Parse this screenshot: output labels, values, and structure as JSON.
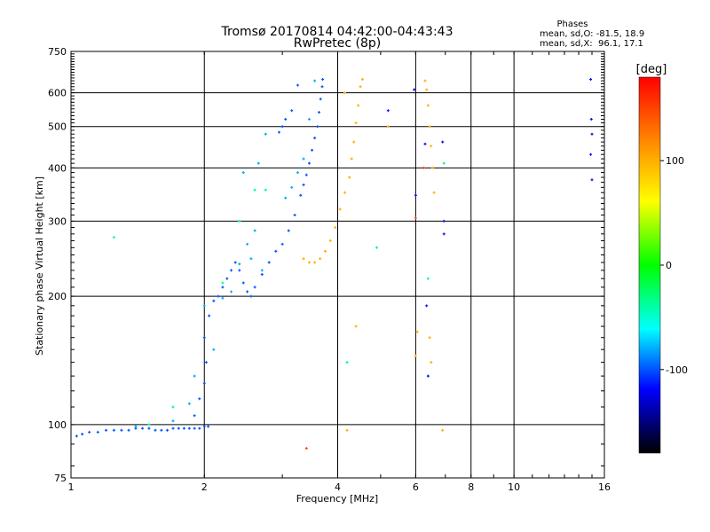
{
  "chart_data": {
    "type": "scatter",
    "title": "Tromsø 20170814 04:42:00-04:43:43",
    "subtitle": "RwPretec (8p)",
    "xlabel": "Frequency [MHz]",
    "ylabel": "Stationary phase Virtual Height [km]",
    "x_scale": "log",
    "y_scale": "log",
    "xlim": [
      1,
      16
    ],
    "ylim": [
      75,
      750
    ],
    "x_ticks": [
      1,
      2,
      4,
      6,
      8,
      10,
      16
    ],
    "y_ticks": [
      75,
      100,
      200,
      300,
      400,
      500,
      600,
      750
    ],
    "grid": true,
    "phases_box": {
      "title": "Phases",
      "line_o": "mean, sd,O: -81.5, 18.9",
      "line_x": "mean, sd,X:  96.1, 17.1"
    },
    "colorbar": {
      "label": "[deg]",
      "range": [
        -180,
        180
      ],
      "ticks": [
        100,
        0,
        -100
      ],
      "colors": [
        "#ff0000",
        "#ff8800",
        "#ffff00",
        "#00ff00",
        "#00ffff",
        "#0000ff",
        "#000000"
      ]
    },
    "series": [
      {
        "phase": -100,
        "points": [
          [
            1.03,
            94
          ],
          [
            1.06,
            95
          ],
          [
            1.1,
            96
          ],
          [
            1.15,
            96
          ],
          [
            1.2,
            97
          ],
          [
            1.25,
            97
          ],
          [
            1.3,
            97
          ],
          [
            1.35,
            97
          ],
          [
            1.4,
            98
          ],
          [
            1.45,
            98
          ],
          [
            1.5,
            98
          ],
          [
            1.55,
            97
          ],
          [
            1.6,
            97
          ],
          [
            1.65,
            97
          ],
          [
            1.7,
            98
          ],
          [
            1.75,
            98
          ],
          [
            1.8,
            98
          ],
          [
            1.85,
            98
          ],
          [
            1.9,
            98
          ],
          [
            1.95,
            98
          ],
          [
            2.0,
            99
          ],
          [
            2.04,
            99
          ],
          [
            1.9,
            105
          ],
          [
            1.95,
            115
          ],
          [
            2.0,
            125
          ],
          [
            2.02,
            140
          ],
          [
            2.0,
            160
          ],
          [
            2.05,
            180
          ],
          [
            2.1,
            195
          ],
          [
            2.15,
            200
          ],
          [
            2.2,
            210
          ],
          [
            2.25,
            220
          ],
          [
            2.3,
            230
          ],
          [
            2.35,
            240
          ],
          [
            2.4,
            230
          ],
          [
            2.45,
            215
          ],
          [
            2.5,
            205
          ],
          [
            2.55,
            200
          ],
          [
            2.6,
            210
          ],
          [
            2.7,
            225
          ],
          [
            2.8,
            240
          ],
          [
            2.9,
            255
          ],
          [
            3.0,
            265
          ],
          [
            3.1,
            285
          ],
          [
            3.2,
            310
          ],
          [
            3.3,
            345
          ],
          [
            3.35,
            365
          ],
          [
            3.4,
            385
          ],
          [
            3.45,
            410
          ],
          [
            3.5,
            440
          ],
          [
            3.55,
            470
          ],
          [
            3.6,
            500
          ],
          [
            3.63,
            540
          ],
          [
            3.66,
            580
          ],
          [
            3.69,
            620
          ],
          [
            3.7,
            645
          ],
          [
            2.95,
            485
          ],
          [
            3.0,
            500
          ],
          [
            3.05,
            520
          ],
          [
            3.15,
            545
          ],
          [
            3.25,
            625
          ]
        ]
      },
      {
        "phase": -80,
        "points": [
          [
            1.4,
            99
          ],
          [
            1.7,
            102
          ],
          [
            1.85,
            112
          ],
          [
            1.9,
            130
          ],
          [
            2.1,
            150
          ],
          [
            2.0,
            190
          ],
          [
            2.2,
            198
          ],
          [
            2.3,
            205
          ],
          [
            2.4,
            238
          ],
          [
            2.5,
            265
          ],
          [
            2.6,
            285
          ],
          [
            2.7,
            230
          ],
          [
            2.55,
            245
          ],
          [
            2.45,
            390
          ],
          [
            2.65,
            410
          ],
          [
            2.75,
            480
          ],
          [
            3.05,
            340
          ],
          [
            3.15,
            360
          ],
          [
            3.25,
            390
          ],
          [
            3.35,
            420
          ],
          [
            3.45,
            520
          ],
          [
            3.55,
            640
          ]
        ]
      },
      {
        "phase": -30,
        "points": [
          [
            1.25,
            275
          ],
          [
            1.5,
            100
          ],
          [
            1.7,
            110
          ],
          [
            2.2,
            215
          ],
          [
            2.4,
            300
          ],
          [
            2.6,
            355
          ],
          [
            2.75,
            355
          ],
          [
            4.9,
            260
          ],
          [
            4.2,
            140
          ],
          [
            6.4,
            220
          ],
          [
            6.95,
            410
          ]
        ]
      },
      {
        "phase": 100,
        "points": [
          [
            3.35,
            245
          ],
          [
            3.45,
            240
          ],
          [
            3.55,
            240
          ],
          [
            3.65,
            245
          ],
          [
            3.75,
            255
          ],
          [
            3.85,
            270
          ],
          [
            3.95,
            290
          ],
          [
            4.05,
            320
          ],
          [
            4.15,
            350
          ],
          [
            4.25,
            380
          ],
          [
            4.3,
            420
          ],
          [
            4.35,
            460
          ],
          [
            4.4,
            510
          ],
          [
            4.45,
            560
          ],
          [
            4.5,
            620
          ],
          [
            4.55,
            645
          ],
          [
            4.15,
            600
          ],
          [
            5.2,
            500
          ],
          [
            6.3,
            640
          ],
          [
            6.35,
            610
          ],
          [
            6.4,
            560
          ],
          [
            6.45,
            500
          ],
          [
            6.5,
            450
          ],
          [
            6.55,
            400
          ],
          [
            6.6,
            350
          ],
          [
            6.45,
            160
          ],
          [
            6.5,
            140
          ],
          [
            6.0,
            145
          ],
          [
            6.05,
            165
          ],
          [
            6.9,
            97
          ],
          [
            4.2,
            97
          ],
          [
            4.4,
            170
          ]
        ]
      },
      {
        "phase": -115,
        "points": [
          [
            5.95,
            610
          ],
          [
            6.0,
            345
          ],
          [
            6.3,
            455
          ],
          [
            6.35,
            190
          ],
          [
            6.4,
            130
          ],
          [
            6.9,
            460
          ],
          [
            6.95,
            300
          ],
          [
            6.95,
            280
          ],
          [
            5.2,
            545
          ],
          [
            14.9,
            645
          ],
          [
            14.95,
            520
          ],
          [
            15.0,
            480
          ],
          [
            14.9,
            430
          ],
          [
            15.0,
            375
          ]
        ]
      },
      {
        "phase": 150,
        "points": [
          [
            6.25,
            400
          ],
          [
            6.0,
            305
          ],
          [
            3.4,
            88
          ]
        ]
      }
    ]
  }
}
